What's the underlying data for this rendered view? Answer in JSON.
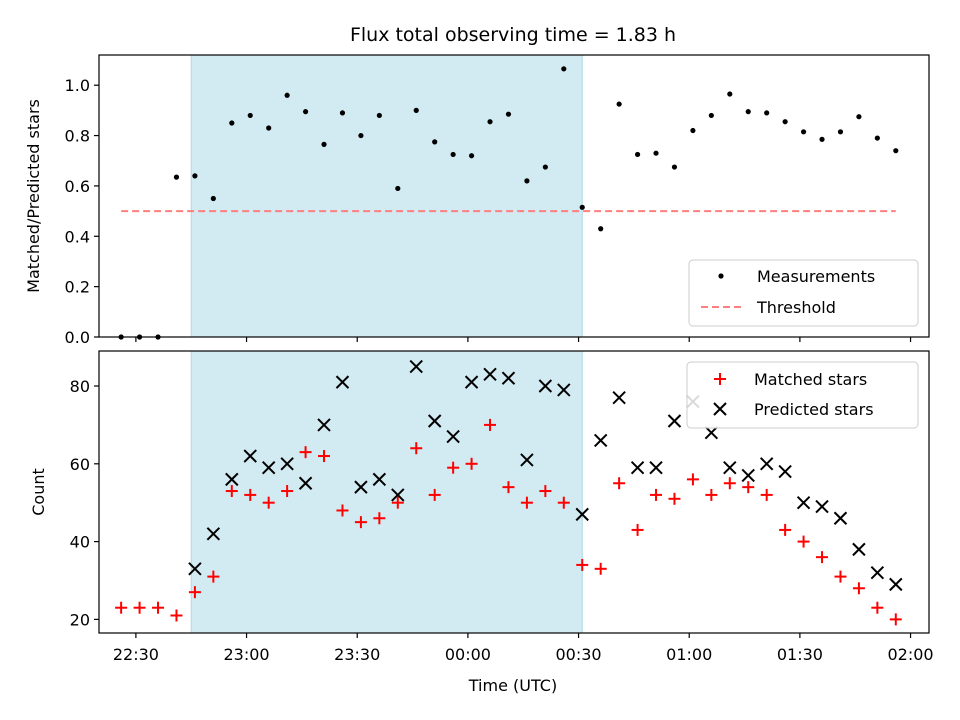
{
  "figure": {
    "title": "Flux total observing time = 1.83 h"
  },
  "top_panel": {
    "ylabel": "Matched/Predicted stars",
    "legend": {
      "measurements": "Measurements",
      "threshold": "Threshold"
    }
  },
  "bottom_panel": {
    "ylabel": "Count",
    "xlabel": "Time (UTC)",
    "legend": {
      "matched": "Matched stars",
      "predicted": "Predicted stars"
    }
  },
  "colors": {
    "shade": "#add8e6",
    "measurements": "#000000",
    "threshold": "#ff7f7f",
    "matched": "#ff0000",
    "predicted": "#000000"
  },
  "chart_data": [
    {
      "type": "scatter",
      "panel": "top",
      "title": "Flux total observing time = 1.83 h",
      "ylabel": "Matched/Predicted stars",
      "xlim": [
        "22:20",
        "02:05"
      ],
      "ylim": [
        0,
        1.12
      ],
      "x_ticks": [
        "22:30",
        "23:00",
        "23:30",
        "00:00",
        "00:30",
        "01:00",
        "01:30",
        "02:00"
      ],
      "y_ticks": [
        "0.0",
        "0.2",
        "0.4",
        "0.6",
        "0.8",
        "1.0"
      ],
      "shaded_span": [
        "22:45",
        "00:31"
      ],
      "legend_position": "lower right",
      "series": [
        {
          "name": "Measurements",
          "marker": "dot",
          "x": [
            "22:26",
            "22:31",
            "22:36",
            "22:41",
            "22:46",
            "22:51",
            "22:56",
            "23:01",
            "23:06",
            "23:11",
            "23:16",
            "23:21",
            "23:26",
            "23:31",
            "23:36",
            "23:41",
            "23:46",
            "23:51",
            "23:56",
            "00:01",
            "00:06",
            "00:11",
            "00:16",
            "00:21",
            "00:26",
            "00:31",
            "00:36",
            "00:41",
            "00:46",
            "00:51",
            "00:56",
            "01:01",
            "01:06",
            "01:11",
            "01:16",
            "01:21",
            "01:26",
            "01:31",
            "01:36",
            "01:41",
            "01:46",
            "01:51",
            "01:56"
          ],
          "values": [
            0.0,
            0.0,
            0.0,
            0.635,
            0.64,
            0.55,
            0.85,
            0.88,
            0.83,
            0.96,
            0.895,
            0.765,
            0.89,
            0.8,
            0.88,
            0.59,
            0.9,
            0.775,
            0.725,
            0.72,
            0.855,
            0.885,
            0.62,
            0.675,
            1.065,
            0.515,
            0.43,
            0.925,
            0.725,
            0.73,
            0.675,
            0.82,
            0.88,
            0.965,
            0.895,
            0.89,
            0.855,
            0.815,
            0.785,
            0.815,
            0.875,
            0.79,
            0.74
          ]
        },
        {
          "name": "Threshold",
          "style": "dashed",
          "x": [
            "22:26",
            "01:56"
          ],
          "values": [
            0.5,
            0.5
          ]
        }
      ]
    },
    {
      "type": "scatter",
      "panel": "bottom",
      "xlabel": "Time (UTC)",
      "ylabel": "Count",
      "xlim": [
        "22:20",
        "02:05"
      ],
      "ylim": [
        16.5,
        89
      ],
      "x_ticks": [
        "22:30",
        "23:00",
        "23:30",
        "00:00",
        "00:30",
        "01:00",
        "01:30",
        "02:00"
      ],
      "y_ticks": [
        "20",
        "40",
        "60",
        "80"
      ],
      "shaded_span": [
        "22:45",
        "00:31"
      ],
      "legend_position": "upper right",
      "series": [
        {
          "name": "Matched stars",
          "marker": "plus",
          "x": [
            "22:26",
            "22:31",
            "22:36",
            "22:41",
            "22:46",
            "22:51",
            "22:56",
            "23:01",
            "23:06",
            "23:11",
            "23:16",
            "23:21",
            "23:26",
            "23:31",
            "23:36",
            "23:41",
            "23:46",
            "23:51",
            "23:56",
            "00:01",
            "00:06",
            "00:11",
            "00:16",
            "00:21",
            "00:26",
            "00:31",
            "00:36",
            "00:41",
            "00:46",
            "00:51",
            "00:56",
            "01:01",
            "01:06",
            "01:11",
            "01:16",
            "01:21",
            "01:26",
            "01:31",
            "01:36",
            "01:41",
            "01:46",
            "01:51",
            "01:56"
          ],
          "values": [
            23,
            23,
            23,
            21,
            27,
            31,
            53,
            52,
            50,
            53,
            63,
            62,
            48,
            45,
            46,
            50,
            64,
            52,
            59,
            60,
            70,
            54,
            50,
            53,
            50,
            34,
            33,
            55,
            43,
            52,
            51,
            56,
            52,
            55,
            54,
            52,
            43,
            40,
            36,
            31,
            28,
            23,
            20
          ]
        },
        {
          "name": "Predicted stars",
          "marker": "x",
          "x": [
            "22:46",
            "22:51",
            "22:56",
            "23:01",
            "23:06",
            "23:11",
            "23:16",
            "23:21",
            "23:26",
            "23:31",
            "23:36",
            "23:41",
            "23:46",
            "23:51",
            "23:56",
            "00:01",
            "00:06",
            "00:11",
            "00:16",
            "00:21",
            "00:26",
            "00:31",
            "00:36",
            "00:41",
            "00:46",
            "00:51",
            "00:56",
            "01:01",
            "01:06",
            "01:11",
            "01:16",
            "01:21",
            "01:26",
            "01:31",
            "01:36",
            "01:41",
            "01:46",
            "01:51",
            "01:56"
          ],
          "values": [
            33,
            42,
            56,
            62,
            59,
            60,
            55,
            70,
            81,
            54,
            56,
            52,
            85,
            71,
            67,
            81,
            83,
            82,
            61,
            80,
            79,
            47,
            66,
            77,
            59,
            59,
            71,
            76,
            68,
            59,
            57,
            60,
            58,
            50,
            49,
            46,
            38,
            32,
            29
          ]
        }
      ]
    }
  ]
}
